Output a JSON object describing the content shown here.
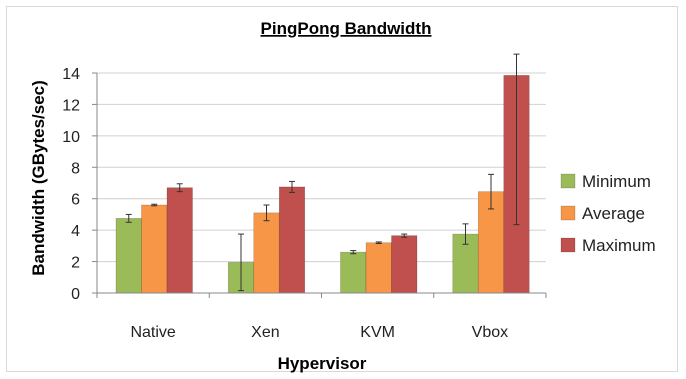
{
  "chart_data": {
    "type": "bar",
    "title": "PingPong Bandwidth",
    "xlabel": "Hypervisor",
    "ylabel": "Bandwidth (GBytes/sec)",
    "categories": [
      "Native",
      "Xen",
      "KVM",
      "Vbox"
    ],
    "ylim": [
      0,
      14
    ],
    "yticks": [
      0,
      2,
      4,
      6,
      8,
      10,
      12,
      14
    ],
    "grid": true,
    "legend_position": "right",
    "series": [
      {
        "name": "Minimum",
        "color": "#9bbb59",
        "values": [
          4.75,
          1.95,
          2.6,
          3.75
        ],
        "error": [
          0.25,
          1.8,
          0.1,
          0.65
        ]
      },
      {
        "name": "Average",
        "color": "#f79646",
        "values": [
          5.6,
          5.1,
          3.2,
          6.45
        ],
        "error": [
          0.05,
          0.5,
          0.05,
          1.1
        ]
      },
      {
        "name": "Maximum",
        "color": "#c0504d",
        "values": [
          6.7,
          6.75,
          3.65,
          13.85
        ],
        "error": [
          0.25,
          0.35,
          0.1,
          9.5
        ]
      }
    ]
  }
}
